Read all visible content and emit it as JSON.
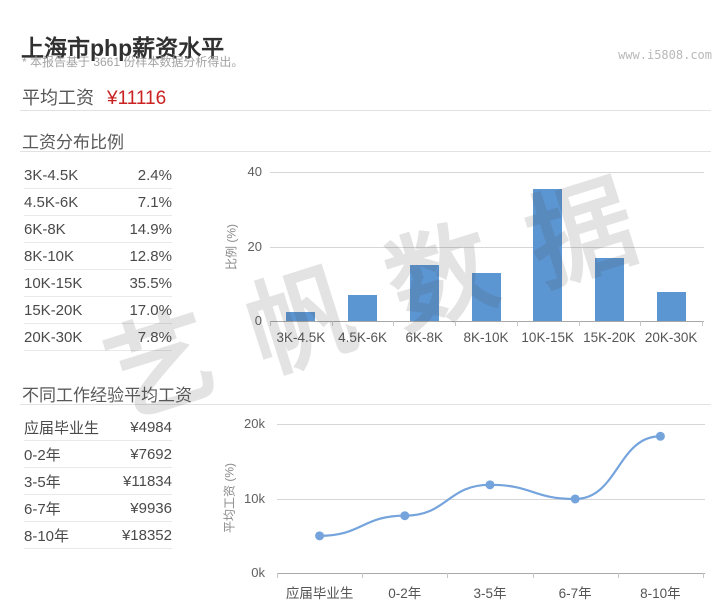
{
  "header": {
    "title": "上海市php薪资水平",
    "subtitle": "* 本报告基于 3661 份样本数据分析得出。",
    "website": "www.i5808.com"
  },
  "average": {
    "label": "平均工资",
    "value": "¥11116"
  },
  "watermark_text": "艺帆数据",
  "colors": {
    "accent_red": "#cb2121",
    "bar_blue": "#5b96d3",
    "line_blue": "#75a4dd",
    "grid": "#d6d6d6"
  },
  "sections": {
    "distribution": {
      "title": "工资分布比例",
      "rows": [
        {
          "label": "3K-4.5K",
          "value": "2.4%"
        },
        {
          "label": "4.5K-6K",
          "value": "7.1%"
        },
        {
          "label": "6K-8K",
          "value": "14.9%"
        },
        {
          "label": "8K-10K",
          "value": "12.8%"
        },
        {
          "label": "10K-15K",
          "value": "35.5%"
        },
        {
          "label": "15K-20K",
          "value": "17.0%"
        },
        {
          "label": "20K-30K",
          "value": "7.8%"
        }
      ]
    },
    "experience": {
      "title": "不同工作经验平均工资",
      "rows": [
        {
          "label": "应届毕业生",
          "value": "¥4984"
        },
        {
          "label": "0-2年",
          "value": "¥7692"
        },
        {
          "label": "3-5年",
          "value": "¥11834"
        },
        {
          "label": "6-7年",
          "value": "¥9936"
        },
        {
          "label": "8-10年",
          "value": "¥18352"
        }
      ]
    }
  },
  "chart_data": [
    {
      "type": "bar",
      "title": "工资分布比例",
      "categories": [
        "3K-4.5K",
        "4.5K-6K",
        "6K-8K",
        "8K-10K",
        "10K-15K",
        "15K-20K",
        "20K-30K"
      ],
      "values": [
        2.4,
        7.1,
        14.9,
        12.8,
        35.5,
        17.0,
        7.8
      ],
      "xlabel": "",
      "ylabel": "比例 (%)",
      "yticks": [
        0,
        20,
        40
      ],
      "ytick_labels": [
        "0",
        "20",
        "40"
      ],
      "ylim": [
        0,
        40
      ],
      "grid": true,
      "legend": "none",
      "bar_color": "#5b96d3"
    },
    {
      "type": "line",
      "title": "不同工作经验平均工资",
      "categories": [
        "应届毕业生",
        "0-2年",
        "3-5年",
        "6-7年",
        "8-10年"
      ],
      "values": [
        4984,
        7692,
        11834,
        9936,
        18352
      ],
      "xlabel": "",
      "ylabel": "平均工资 (%)",
      "yticks": [
        0,
        10000,
        20000
      ],
      "ytick_labels": [
        "0k",
        "10k",
        "20k"
      ],
      "ylim": [
        0,
        20000
      ],
      "grid": true,
      "legend": "none",
      "smooth": true,
      "line_color": "#75a4dd"
    }
  ]
}
